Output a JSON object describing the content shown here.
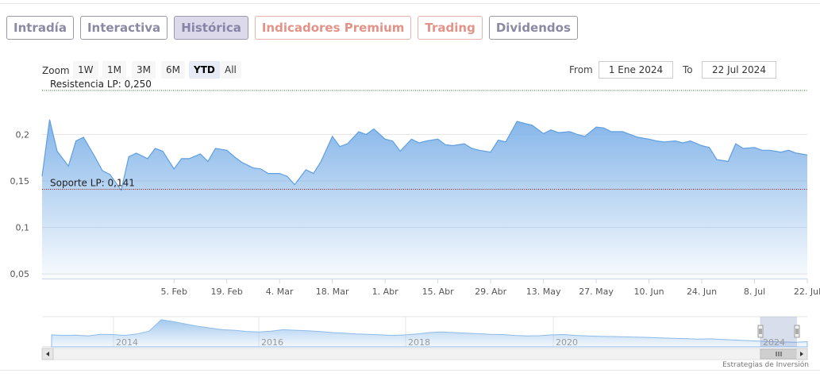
{
  "tabs": [
    {
      "label": "Intradía",
      "state": "normal"
    },
    {
      "label": "Interactiva",
      "state": "normal"
    },
    {
      "label": "Histórica",
      "state": "active"
    },
    {
      "label": "Indicadores Premium",
      "state": "premium"
    },
    {
      "label": "Trading",
      "state": "premium"
    },
    {
      "label": "Dividendos",
      "state": "normal"
    }
  ],
  "zoom": {
    "label": "Zoom",
    "buttons": [
      "1W",
      "1M",
      "3M",
      "6M",
      "YTD",
      "All"
    ],
    "selected": "YTD"
  },
  "range": {
    "from_label": "From",
    "from_value": "1 Ene 2024",
    "to_label": "To",
    "to_value": "22 Jul 2024"
  },
  "credits": "Estrategias de Inversión",
  "colors": {
    "series": "#5f9fe0",
    "resistance_line": "#2f6b2f",
    "support_line": "#8b1a1a"
  },
  "chart_data": {
    "type": "area",
    "x_start": "2024-01-01",
    "x_end": "2024-07-22",
    "ylim": [
      0.045,
      0.255
    ],
    "y_ticks": [
      {
        "value": 0.05,
        "label": "0,05"
      },
      {
        "value": 0.1,
        "label": "0,1"
      },
      {
        "value": 0.15,
        "label": "0,15"
      },
      {
        "value": 0.2,
        "label": "0,2"
      }
    ],
    "x_ticks": [
      {
        "date": "2024-02-05",
        "label": "5. Feb"
      },
      {
        "date": "2024-02-19",
        "label": "19. Feb"
      },
      {
        "date": "2024-03-04",
        "label": "4. Mar"
      },
      {
        "date": "2024-03-18",
        "label": "18. Mar"
      },
      {
        "date": "2024-04-01",
        "label": "1. Abr"
      },
      {
        "date": "2024-04-15",
        "label": "15. Abr"
      },
      {
        "date": "2024-04-29",
        "label": "29. Abr"
      },
      {
        "date": "2024-05-13",
        "label": "13. May"
      },
      {
        "date": "2024-05-27",
        "label": "27. May"
      },
      {
        "date": "2024-06-10",
        "label": "10. Jun"
      },
      {
        "date": "2024-06-24",
        "label": "24. Jun"
      },
      {
        "date": "2024-07-08",
        "label": "8. Jul"
      },
      {
        "date": "2024-07-22",
        "label": "22. Jul"
      }
    ],
    "plot_lines": [
      {
        "label": "Resistencia LP: 0,250",
        "value": 0.25,
        "style": "dotted"
      },
      {
        "label": "Soporte LP: 0,141",
        "value": 0.141,
        "style": "dotted"
      }
    ],
    "series": [
      {
        "dates": [
          "2024-01-01",
          "2024-01-03",
          "2024-01-05",
          "2024-01-08",
          "2024-01-10",
          "2024-01-12",
          "2024-01-15",
          "2024-01-17",
          "2024-01-19",
          "2024-01-22",
          "2024-01-24",
          "2024-01-26",
          "2024-01-29",
          "2024-01-31",
          "2024-02-02",
          "2024-02-05",
          "2024-02-07",
          "2024-02-09",
          "2024-02-12",
          "2024-02-14",
          "2024-02-16",
          "2024-02-19",
          "2024-02-21",
          "2024-02-23",
          "2024-02-26",
          "2024-02-28",
          "2024-03-01",
          "2024-03-04",
          "2024-03-06",
          "2024-03-08",
          "2024-03-11",
          "2024-03-13",
          "2024-03-15",
          "2024-03-18",
          "2024-03-20",
          "2024-03-22",
          "2024-03-25",
          "2024-03-27",
          "2024-03-29",
          "2024-04-01",
          "2024-04-03",
          "2024-04-05",
          "2024-04-08",
          "2024-04-10",
          "2024-04-12",
          "2024-04-15",
          "2024-04-17",
          "2024-04-19",
          "2024-04-22",
          "2024-04-24",
          "2024-04-26",
          "2024-04-29",
          "2024-05-01",
          "2024-05-03",
          "2024-05-06",
          "2024-05-08",
          "2024-05-10",
          "2024-05-13",
          "2024-05-15",
          "2024-05-17",
          "2024-05-20",
          "2024-05-22",
          "2024-05-24",
          "2024-05-27",
          "2024-05-29",
          "2024-05-31",
          "2024-06-03",
          "2024-06-05",
          "2024-06-07",
          "2024-06-10",
          "2024-06-12",
          "2024-06-14",
          "2024-06-17",
          "2024-06-19",
          "2024-06-21",
          "2024-06-24",
          "2024-06-26",
          "2024-06-28",
          "2024-07-01",
          "2024-07-03",
          "2024-07-05",
          "2024-07-08",
          "2024-07-10",
          "2024-07-12",
          "2024-07-15",
          "2024-07-17",
          "2024-07-19",
          "2024-07-22"
        ],
        "values": [
          0.155,
          0.216,
          0.182,
          0.166,
          0.193,
          0.197,
          0.176,
          0.161,
          0.157,
          0.14,
          0.176,
          0.18,
          0.174,
          0.185,
          0.182,
          0.163,
          0.174,
          0.174,
          0.179,
          0.171,
          0.185,
          0.183,
          0.176,
          0.17,
          0.164,
          0.163,
          0.158,
          0.158,
          0.155,
          0.146,
          0.162,
          0.158,
          0.171,
          0.198,
          0.187,
          0.19,
          0.203,
          0.2,
          0.206,
          0.195,
          0.193,
          0.182,
          0.195,
          0.191,
          0.193,
          0.195,
          0.189,
          0.188,
          0.19,
          0.185,
          0.183,
          0.181,
          0.194,
          0.192,
          0.214,
          0.212,
          0.21,
          0.201,
          0.205,
          0.202,
          0.203,
          0.2,
          0.198,
          0.208,
          0.207,
          0.203,
          0.203,
          0.2,
          0.197,
          0.195,
          0.193,
          0.192,
          0.193,
          0.191,
          0.193,
          0.188,
          0.186,
          0.173,
          0.171,
          0.19,
          0.185,
          0.186,
          0.183,
          0.183,
          0.181,
          0.183,
          0.18,
          0.178
        ]
      }
    ],
    "navigator": {
      "x_labels": [
        "2014",
        "2016",
        "2018",
        "2020",
        "2024"
      ]
    }
  }
}
